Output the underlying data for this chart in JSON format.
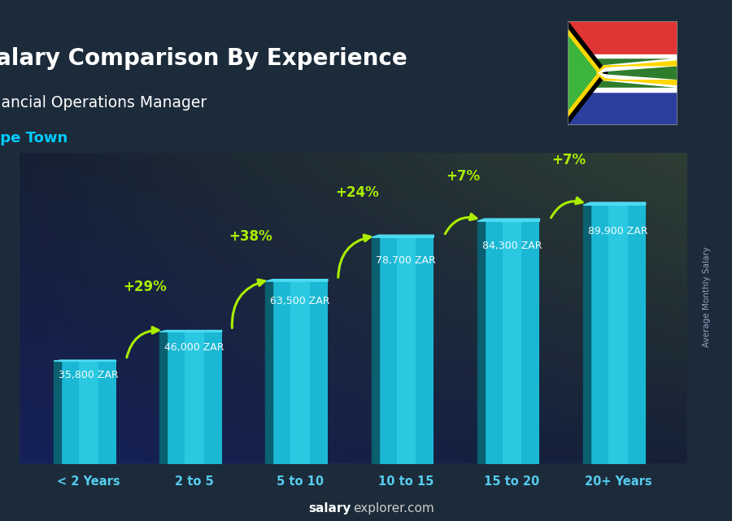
{
  "title": "Salary Comparison By Experience",
  "subtitle": "Financial Operations Manager",
  "location": "Cape Town",
  "ylabel": "Average Monthly Salary",
  "categories": [
    "< 2 Years",
    "2 to 5",
    "5 to 10",
    "10 to 15",
    "15 to 20",
    "20+ Years"
  ],
  "values": [
    35800,
    46000,
    63500,
    78700,
    84300,
    89900
  ],
  "value_labels": [
    "35,800 ZAR",
    "46,000 ZAR",
    "63,500 ZAR",
    "78,700 ZAR",
    "84,300 ZAR",
    "89,900 ZAR"
  ],
  "pct_labels": [
    "+29%",
    "+38%",
    "+24%",
    "+7%",
    "+7%"
  ],
  "bar_color_main": "#1ab8d4",
  "bar_color_light": "#3dd8f0",
  "bar_color_dark": "#0d7a94",
  "bar_color_side": "#0a6070",
  "bar_color_top": "#50e0f8",
  "bg_color": "#1c2b3a",
  "title_color": "#ffffff",
  "subtitle_color": "#ffffff",
  "location_color": "#00ccff",
  "value_label_color": "#ffffff",
  "pct_color": "#aaee00",
  "arrow_color": "#aaee00",
  "xtick_color": "#55ccee",
  "footer_salary_color": "#ffffff",
  "footer_explorer_color": "#cccccc",
  "ylim_max": 108000,
  "fig_width": 9.0,
  "fig_height": 6.41,
  "bar_width": 0.52
}
